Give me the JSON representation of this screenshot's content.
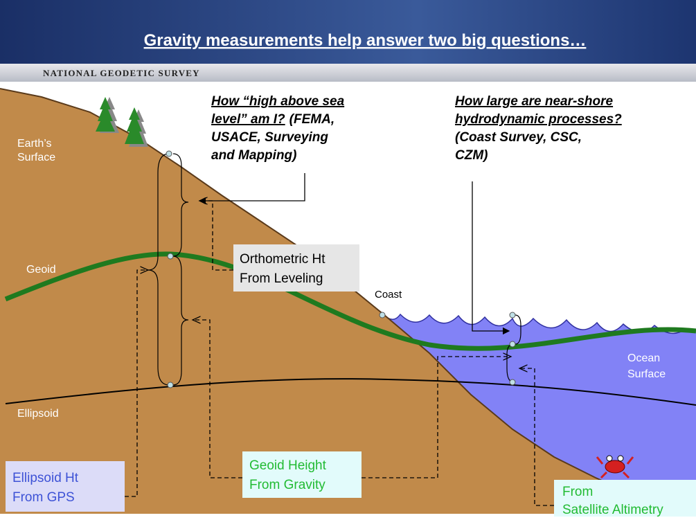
{
  "header": {
    "title": "Gravity measurements help answer two big questions…",
    "agency": "NATIONAL GEODETIC SURVEY"
  },
  "question_1": {
    "lines": [
      [
        "How “high above sea"
      ],
      [
        "level” am I?",
        "(FEMA,"
      ],
      [
        "USACE, Surveying"
      ],
      [
        "and Mapping)"
      ]
    ]
  },
  "question_2": {
    "lines": [
      [
        "How large are near-shore"
      ],
      [
        "hydrodynamic processes?"
      ],
      [
        "(Coast Survey, CSC,"
      ],
      [
        "CZM)"
      ]
    ]
  },
  "labels": {
    "earth_surface": [
      "Earth’s",
      "Surface"
    ],
    "geoid": "Geoid",
    "ellipsoid": "Ellipsoid",
    "coast": "Coast",
    "ocean_surface": [
      "Ocean",
      "Surface"
    ]
  },
  "boxes": {
    "orthometric": [
      "Orthometric Ht",
      "From Leveling"
    ],
    "geoid_height": [
      "Geoid Height",
      "From Gravity"
    ],
    "ellipsoid_height": [
      "Ellipsoid Ht",
      "From GPS"
    ],
    "altimetry": [
      "From",
      "Satellite Altimetry"
    ]
  }
}
